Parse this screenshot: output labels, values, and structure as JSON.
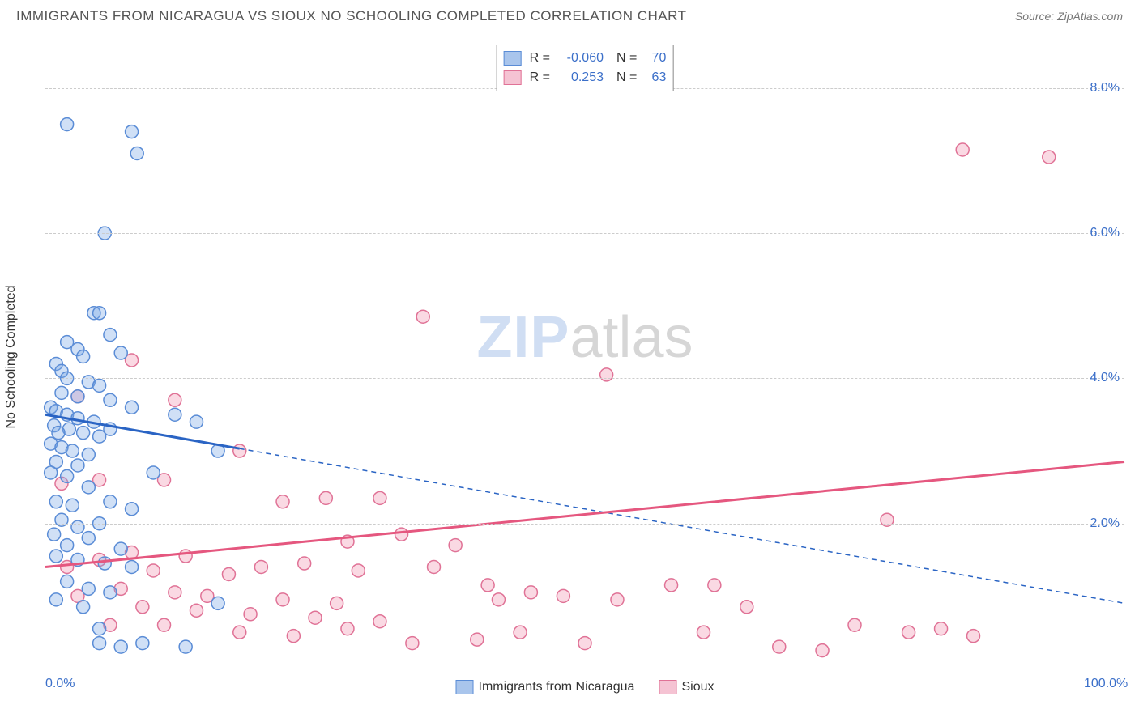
{
  "header": {
    "title": "IMMIGRANTS FROM NICARAGUA VS SIOUX NO SCHOOLING COMPLETED CORRELATION CHART",
    "source_label": "Source: ",
    "source_name": "ZipAtlas.com"
  },
  "watermark": {
    "part1": "ZIP",
    "part2": "atlas"
  },
  "chart": {
    "type": "scatter",
    "xlim": [
      0,
      100
    ],
    "ylim": [
      0,
      8.6
    ],
    "ylabel": "No Schooling Completed",
    "yticks": [
      2.0,
      4.0,
      6.0,
      8.0
    ],
    "ytick_labels": [
      "2.0%",
      "4.0%",
      "6.0%",
      "8.0%"
    ],
    "xticks": [
      0,
      100
    ],
    "xtick_labels": [
      "0.0%",
      "100.0%"
    ],
    "background_color": "#ffffff",
    "grid_color": "#cccccc",
    "marker_radius": 8,
    "marker_stroke_width": 1.5,
    "series": [
      {
        "name": "Immigrants from Nicaragua",
        "fill": "rgba(120,165,230,0.35)",
        "stroke": "#5a8cd6",
        "swatch_fill": "#a9c5ec",
        "swatch_border": "#5a8cd6",
        "r_value": "-0.060",
        "n_value": "70",
        "trend": {
          "x1": 0,
          "y1": 3.5,
          "x2": 100,
          "y2": 0.9,
          "solid_until_x": 18,
          "color": "#2a64c4",
          "width": 3
        },
        "points": [
          [
            2,
            7.5
          ],
          [
            8,
            7.4
          ],
          [
            8.5,
            7.1
          ],
          [
            5.5,
            6.0
          ],
          [
            4.5,
            4.9
          ],
          [
            5,
            4.9
          ],
          [
            6,
            4.6
          ],
          [
            2,
            4.5
          ],
          [
            3,
            4.4
          ],
          [
            7,
            4.35
          ],
          [
            3.5,
            4.3
          ],
          [
            1,
            4.2
          ],
          [
            1.5,
            4.1
          ],
          [
            2,
            4.0
          ],
          [
            4,
            3.95
          ],
          [
            5,
            3.9
          ],
          [
            1.5,
            3.8
          ],
          [
            3,
            3.75
          ],
          [
            6,
            3.7
          ],
          [
            0.5,
            3.6
          ],
          [
            1,
            3.55
          ],
          [
            2,
            3.5
          ],
          [
            3,
            3.45
          ],
          [
            4.5,
            3.4
          ],
          [
            8,
            3.6
          ],
          [
            0.8,
            3.35
          ],
          [
            2.2,
            3.3
          ],
          [
            1.2,
            3.25
          ],
          [
            3.5,
            3.25
          ],
          [
            5,
            3.2
          ],
          [
            12,
            3.5
          ],
          [
            14,
            3.4
          ],
          [
            0.5,
            3.1
          ],
          [
            1.5,
            3.05
          ],
          [
            2.5,
            3.0
          ],
          [
            4,
            2.95
          ],
          [
            6,
            3.3
          ],
          [
            16,
            3.0
          ],
          [
            1,
            2.85
          ],
          [
            3,
            2.8
          ],
          [
            0.5,
            2.7
          ],
          [
            2,
            2.65
          ],
          [
            4,
            2.5
          ],
          [
            1,
            2.3
          ],
          [
            2.5,
            2.25
          ],
          [
            6,
            2.3
          ],
          [
            8,
            2.2
          ],
          [
            10,
            2.7
          ],
          [
            1.5,
            2.05
          ],
          [
            3,
            1.95
          ],
          [
            5,
            2.0
          ],
          [
            0.8,
            1.85
          ],
          [
            2,
            1.7
          ],
          [
            4,
            1.8
          ],
          [
            7,
            1.65
          ],
          [
            1,
            1.55
          ],
          [
            3,
            1.5
          ],
          [
            5.5,
            1.45
          ],
          [
            8,
            1.4
          ],
          [
            2,
            1.2
          ],
          [
            4,
            1.1
          ],
          [
            6,
            1.05
          ],
          [
            1,
            0.95
          ],
          [
            3.5,
            0.85
          ],
          [
            5,
            0.55
          ],
          [
            16,
            0.9
          ],
          [
            7,
            0.3
          ],
          [
            9,
            0.35
          ],
          [
            13,
            0.3
          ],
          [
            5,
            0.35
          ]
        ]
      },
      {
        "name": "Sioux",
        "fill": "rgba(240,145,175,0.35)",
        "stroke": "#e07296",
        "swatch_fill": "#f5c3d3",
        "swatch_border": "#e07296",
        "r_value": "0.253",
        "n_value": "63",
        "trend": {
          "x1": 0,
          "y1": 1.4,
          "x2": 100,
          "y2": 2.85,
          "solid_until_x": 100,
          "color": "#e5577f",
          "width": 3
        },
        "points": [
          [
            85,
            7.15
          ],
          [
            93,
            7.05
          ],
          [
            35,
            4.85
          ],
          [
            52,
            4.05
          ],
          [
            8,
            4.25
          ],
          [
            3,
            3.75
          ],
          [
            12,
            3.7
          ],
          [
            18,
            3.0
          ],
          [
            11,
            2.6
          ],
          [
            5,
            2.6
          ],
          [
            1.5,
            2.55
          ],
          [
            31,
            2.35
          ],
          [
            26,
            2.35
          ],
          [
            22,
            2.3
          ],
          [
            33,
            1.85
          ],
          [
            28,
            1.75
          ],
          [
            38,
            1.7
          ],
          [
            8,
            1.6
          ],
          [
            13,
            1.55
          ],
          [
            5,
            1.5
          ],
          [
            2,
            1.4
          ],
          [
            10,
            1.35
          ],
          [
            17,
            1.3
          ],
          [
            24,
            1.45
          ],
          [
            20,
            1.4
          ],
          [
            29,
            1.35
          ],
          [
            36,
            1.4
          ],
          [
            41,
            1.15
          ],
          [
            7,
            1.1
          ],
          [
            12,
            1.05
          ],
          [
            3,
            1.0
          ],
          [
            15,
            1.0
          ],
          [
            22,
            0.95
          ],
          [
            27,
            0.9
          ],
          [
            45,
            1.05
          ],
          [
            42,
            0.95
          ],
          [
            48,
            1.0
          ],
          [
            53,
            0.95
          ],
          [
            58,
            1.15
          ],
          [
            9,
            0.85
          ],
          [
            14,
            0.8
          ],
          [
            19,
            0.75
          ],
          [
            25,
            0.7
          ],
          [
            31,
            0.65
          ],
          [
            6,
            0.6
          ],
          [
            11,
            0.6
          ],
          [
            18,
            0.5
          ],
          [
            23,
            0.45
          ],
          [
            28,
            0.55
          ],
          [
            78,
            2.05
          ],
          [
            75,
            0.6
          ],
          [
            80,
            0.5
          ],
          [
            83,
            0.55
          ],
          [
            86,
            0.45
          ],
          [
            65,
            0.85
          ],
          [
            62,
            1.15
          ],
          [
            68,
            0.3
          ],
          [
            72,
            0.25
          ],
          [
            61,
            0.5
          ],
          [
            44,
            0.5
          ],
          [
            50,
            0.35
          ],
          [
            40,
            0.4
          ],
          [
            34,
            0.35
          ]
        ]
      }
    ],
    "bottom_legend_items": [
      "Immigrants from Nicaragua",
      "Sioux"
    ]
  }
}
